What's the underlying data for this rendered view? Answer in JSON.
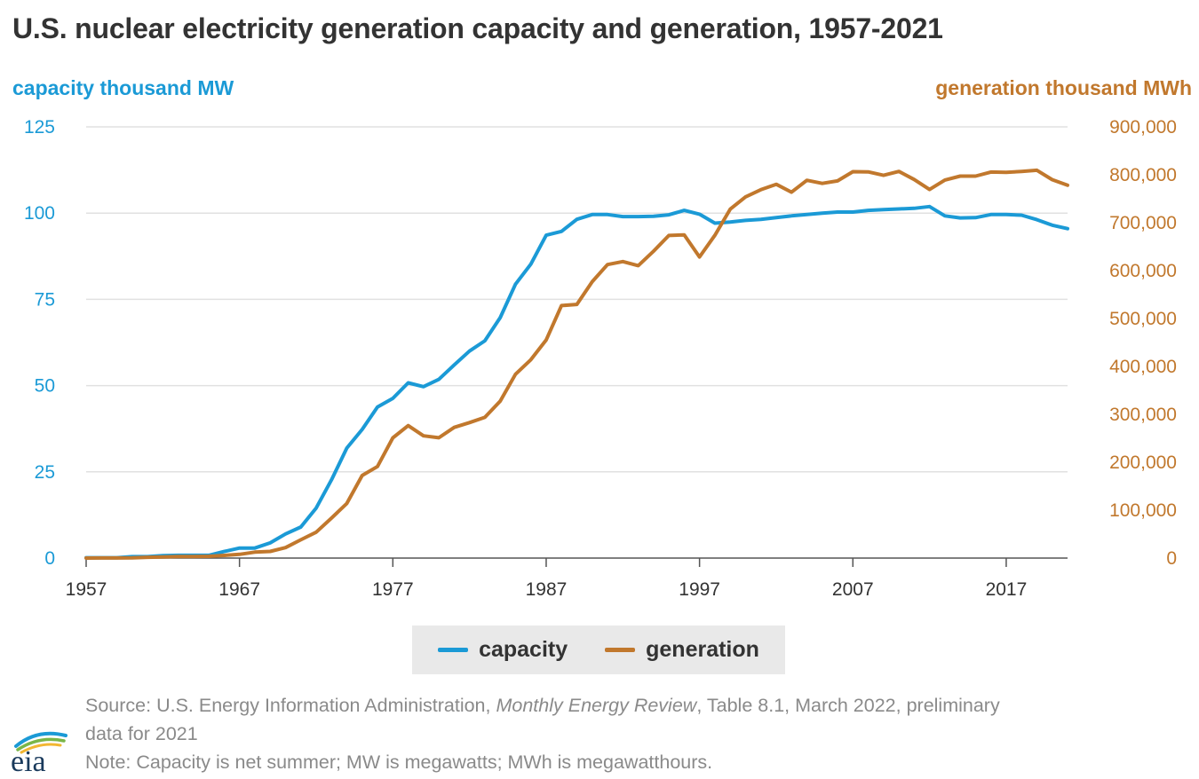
{
  "title": "U.S. nuclear electricity generation capacity and generation, 1957-2021",
  "colors": {
    "capacity": "#1b9ad6",
    "generation": "#c1782d",
    "grid": "#e1e1e1",
    "axis": "#555555",
    "text": "#333333"
  },
  "footer": {
    "source_prefix": "Source: U.S. Energy Information Administration, ",
    "source_italic": "Monthly Energy Review",
    "source_suffix": ", Table 8.1, March 2022, preliminary",
    "source_line2": "data for 2021",
    "note": "Note: Capacity is net summer; MW is megawatts; MWh is megawatthours."
  },
  "logo": {
    "text": "eia"
  },
  "chart_data": {
    "type": "line",
    "title": "U.S. nuclear electricity generation capacity and generation, 1957-2021",
    "xlabel": "",
    "xlim": [
      1957,
      2021
    ],
    "x_ticks": [
      "1957",
      "1967",
      "1977",
      "1987",
      "1997",
      "2007",
      "2017"
    ],
    "left_axis": {
      "label": "capacity thousand MW",
      "ylim": [
        0,
        125
      ],
      "ticks": [
        "0",
        "25",
        "50",
        "75",
        "100",
        "125"
      ]
    },
    "right_axis": {
      "label": "generation thousand MWh",
      "ylim": [
        0,
        900000
      ],
      "ticks": [
        "0",
        "100,000",
        "200,000",
        "300,000",
        "400,000",
        "500,000",
        "600,000",
        "700,000",
        "800,000",
        "900,000"
      ]
    },
    "legend": [
      "capacity",
      "generation"
    ],
    "x": [
      1957,
      1958,
      1959,
      1960,
      1961,
      1962,
      1963,
      1964,
      1965,
      1966,
      1967,
      1968,
      1969,
      1970,
      1971,
      1972,
      1973,
      1974,
      1975,
      1976,
      1977,
      1978,
      1979,
      1980,
      1981,
      1982,
      1983,
      1984,
      1985,
      1986,
      1987,
      1988,
      1989,
      1990,
      1991,
      1992,
      1993,
      1994,
      1995,
      1996,
      1997,
      1998,
      1999,
      2000,
      2001,
      2002,
      2003,
      2004,
      2005,
      2006,
      2007,
      2008,
      2009,
      2010,
      2011,
      2012,
      2013,
      2014,
      2015,
      2016,
      2017,
      2018,
      2019,
      2020,
      2021
    ],
    "series": [
      {
        "name": "capacity",
        "axis": "left",
        "values": [
          0.1,
          0.1,
          0.1,
          0.4,
          0.4,
          0.7,
          0.8,
          0.8,
          0.8,
          1.9,
          2.9,
          2.9,
          4.4,
          7.0,
          9.0,
          14.5,
          22.7,
          31.9,
          37.3,
          43.8,
          46.3,
          50.8,
          49.7,
          51.8,
          56.0,
          60.0,
          63.0,
          69.7,
          79.4,
          85.2,
          93.6,
          94.7,
          98.2,
          99.6,
          99.6,
          99.0,
          99.0,
          99.1,
          99.5,
          100.8,
          99.7,
          97.1,
          97.4,
          97.9,
          98.2,
          98.7,
          99.2,
          99.6,
          100.0,
          100.3,
          100.3,
          100.8,
          101.0,
          101.2,
          101.4,
          101.9,
          99.2,
          98.6,
          98.7,
          99.6,
          99.6,
          99.4,
          98.1,
          96.5,
          95.5
        ]
      },
      {
        "name": "generation",
        "axis": "right",
        "values": [
          0,
          200,
          200,
          500,
          1700,
          2300,
          3200,
          3300,
          3700,
          5500,
          7700,
          12500,
          13900,
          21800,
          38100,
          54100,
          83500,
          114000,
          172500,
          191100,
          250900,
          276400,
          255200,
          251100,
          272700,
          282800,
          293700,
          327600,
          383700,
          414000,
          455300,
          527000,
          529400,
          576900,
          612600,
          618800,
          610300,
          640400,
          673400,
          674700,
          628600,
          673700,
          728300,
          753900,
          768800,
          780100,
          763700,
          788500,
          782000,
          787200,
          806400,
          806200,
          798900,
          807000,
          790200,
          769300,
          789000,
          797200,
          797200,
          805700,
          805000,
          807100,
          809400,
          789900,
          778200
        ]
      }
    ]
  }
}
